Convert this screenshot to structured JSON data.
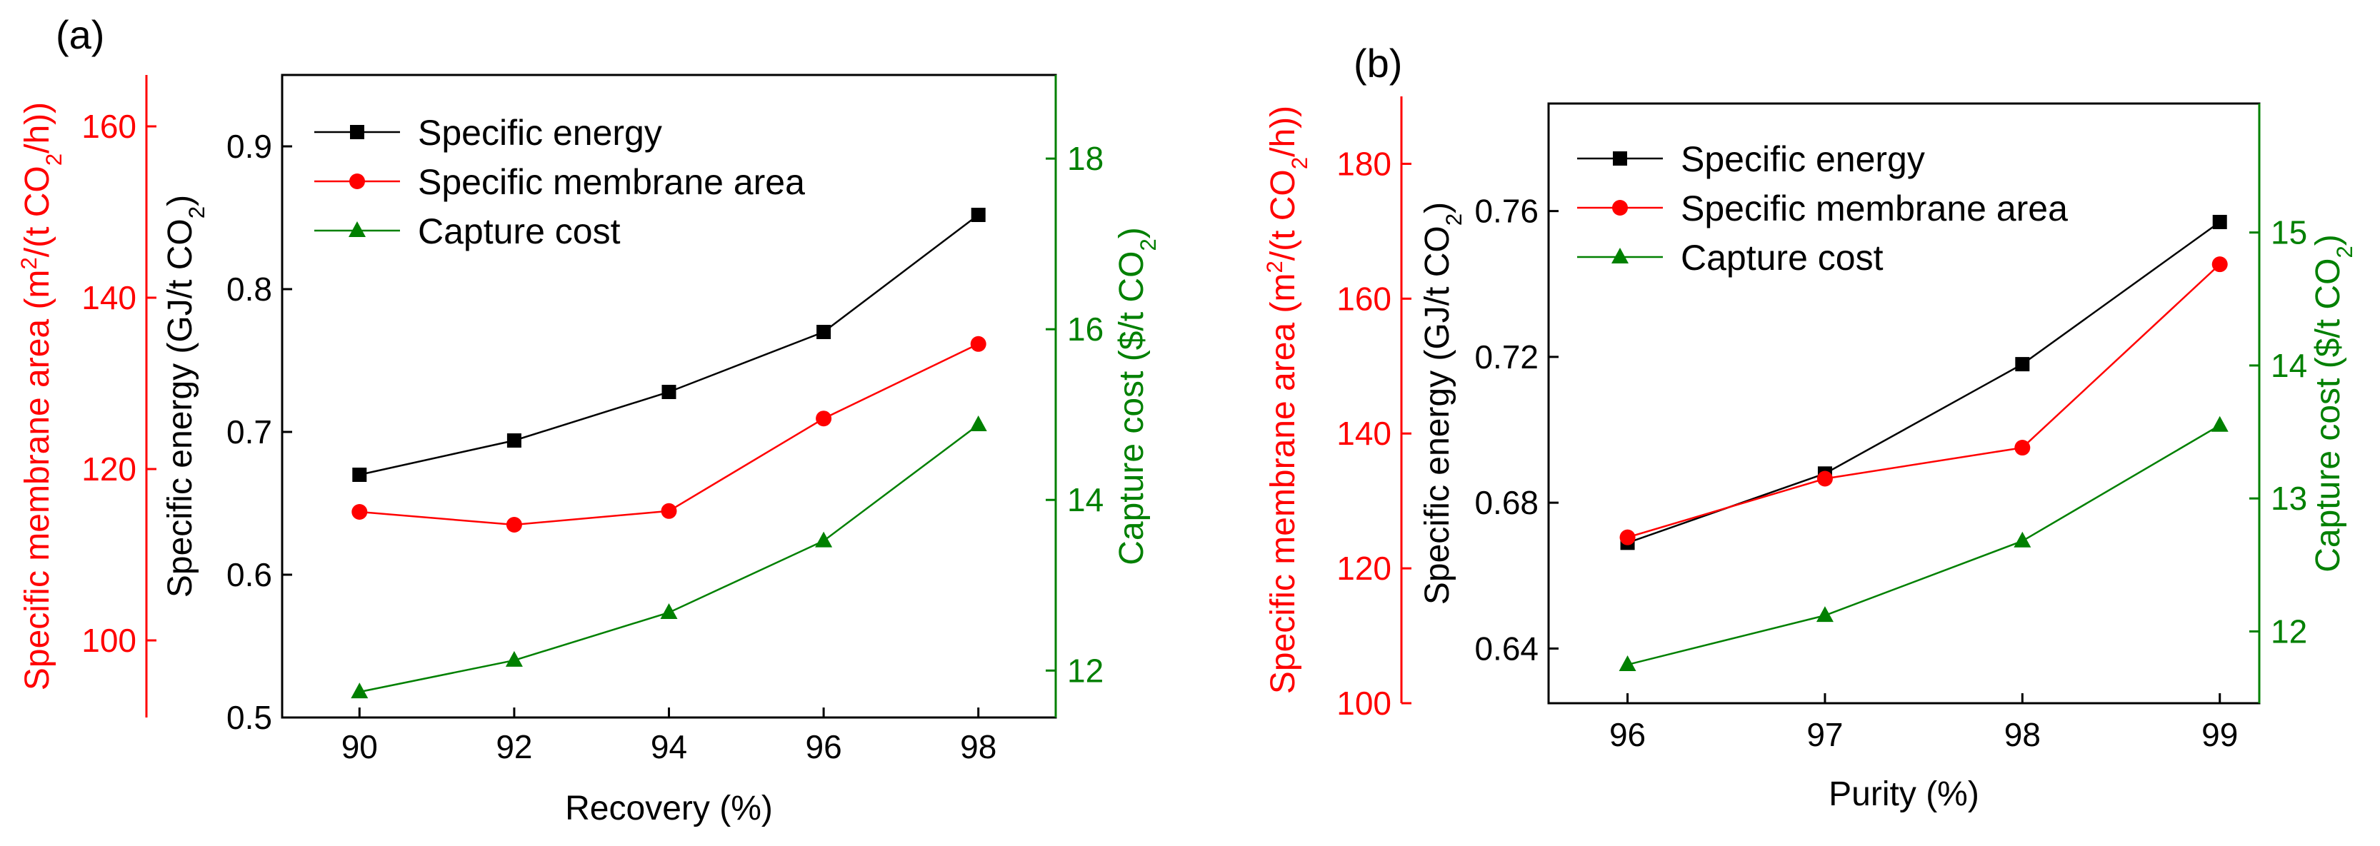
{
  "colors": {
    "energy": "#000000",
    "area": "#ff0000",
    "cost": "#008000",
    "frame": "#000000"
  },
  "panel_labels": [
    "(a)",
    "(b)"
  ],
  "chart_data": [
    {
      "type": "line",
      "panel": "(a)",
      "xlabel": "Recovery (%)",
      "x": [
        90,
        92,
        94,
        96,
        98
      ],
      "xlim": [
        89,
        99
      ],
      "xticks": [
        90,
        92,
        94,
        96,
        98
      ],
      "axes": {
        "left": {
          "label": "Specific energy (GJ/t CO2)",
          "lim": [
            0.5,
            0.95
          ],
          "ticks": [
            0.5,
            0.6,
            0.7,
            0.8,
            0.9
          ],
          "tick_labels": [
            "0.5",
            "0.6",
            "0.7",
            "0.8",
            "0.9"
          ],
          "color": "black"
        },
        "outer_left": {
          "label": "Specific membrane area (m2/(t CO2/h))",
          "lim": [
            91,
            166
          ],
          "ticks": [
            100,
            120,
            140,
            160
          ],
          "tick_labels": [
            "100",
            "120",
            "140",
            "160"
          ],
          "color": "red"
        },
        "right": {
          "label": "Capture cost ($/t CO2)",
          "lim": [
            11.45,
            18.98
          ],
          "ticks": [
            12,
            14,
            16,
            18
          ],
          "tick_labels": [
            "12",
            "14",
            "16",
            "18"
          ],
          "color": "green"
        }
      },
      "series": [
        {
          "name": "Specific energy",
          "axis": "left",
          "marker": "square",
          "color": "black",
          "values": [
            0.67,
            0.694,
            0.728,
            0.77,
            0.852
          ]
        },
        {
          "name": "Specific membrane area",
          "axis": "outer_left",
          "marker": "circle",
          "color": "red",
          "values": [
            115,
            113.5,
            115.1,
            125.9,
            134.6
          ]
        },
        {
          "name": "Capture cost",
          "axis": "right",
          "marker": "triangle",
          "color": "green",
          "values": [
            11.75,
            12.12,
            12.68,
            13.52,
            14.88
          ]
        }
      ],
      "legend": "top-left",
      "grid": false
    },
    {
      "type": "line",
      "panel": "(b)",
      "xlabel": "Purity (%)",
      "x": [
        96,
        97,
        98,
        99
      ],
      "xlim": [
        95.6,
        99.2
      ],
      "xticks": [
        96,
        97,
        98,
        99
      ],
      "axes": {
        "left": {
          "label": "Specific energy (GJ/t CO2)",
          "lim": [
            0.625,
            0.7895
          ],
          "ticks": [
            0.64,
            0.68,
            0.72,
            0.76
          ],
          "tick_labels": [
            "0.64",
            "0.68",
            "0.72",
            "0.76"
          ],
          "color": "black"
        },
        "outer_left": {
          "label": "Specific membrane area (m2/(t CO2/h))",
          "lim": [
            100,
            190
          ],
          "ticks": [
            100,
            120,
            140,
            160,
            180
          ],
          "tick_labels": [
            "100",
            "120",
            "140",
            "160",
            "180"
          ],
          "color": "red"
        },
        "right": {
          "label": "Capture cost ($/t CO2)",
          "lim": [
            11.46,
            15.97
          ],
          "ticks": [
            12,
            13,
            14,
            15
          ],
          "tick_labels": [
            "12",
            "13",
            "14",
            "15"
          ],
          "color": "green"
        }
      },
      "series": [
        {
          "name": "Specific energy",
          "axis": "left",
          "marker": "square",
          "color": "black",
          "values": [
            0.669,
            0.688,
            0.718,
            0.757
          ]
        },
        {
          "name": "Specific membrane area",
          "axis": "outer_left",
          "marker": "circle",
          "color": "red",
          "values": [
            124.6,
            133.3,
            137.9,
            165.1
          ]
        },
        {
          "name": "Capture cost",
          "axis": "right",
          "marker": "triangle",
          "color": "green",
          "values": [
            11.75,
            12.12,
            12.68,
            13.55
          ]
        }
      ],
      "legend": "top-left",
      "grid": false
    }
  ]
}
